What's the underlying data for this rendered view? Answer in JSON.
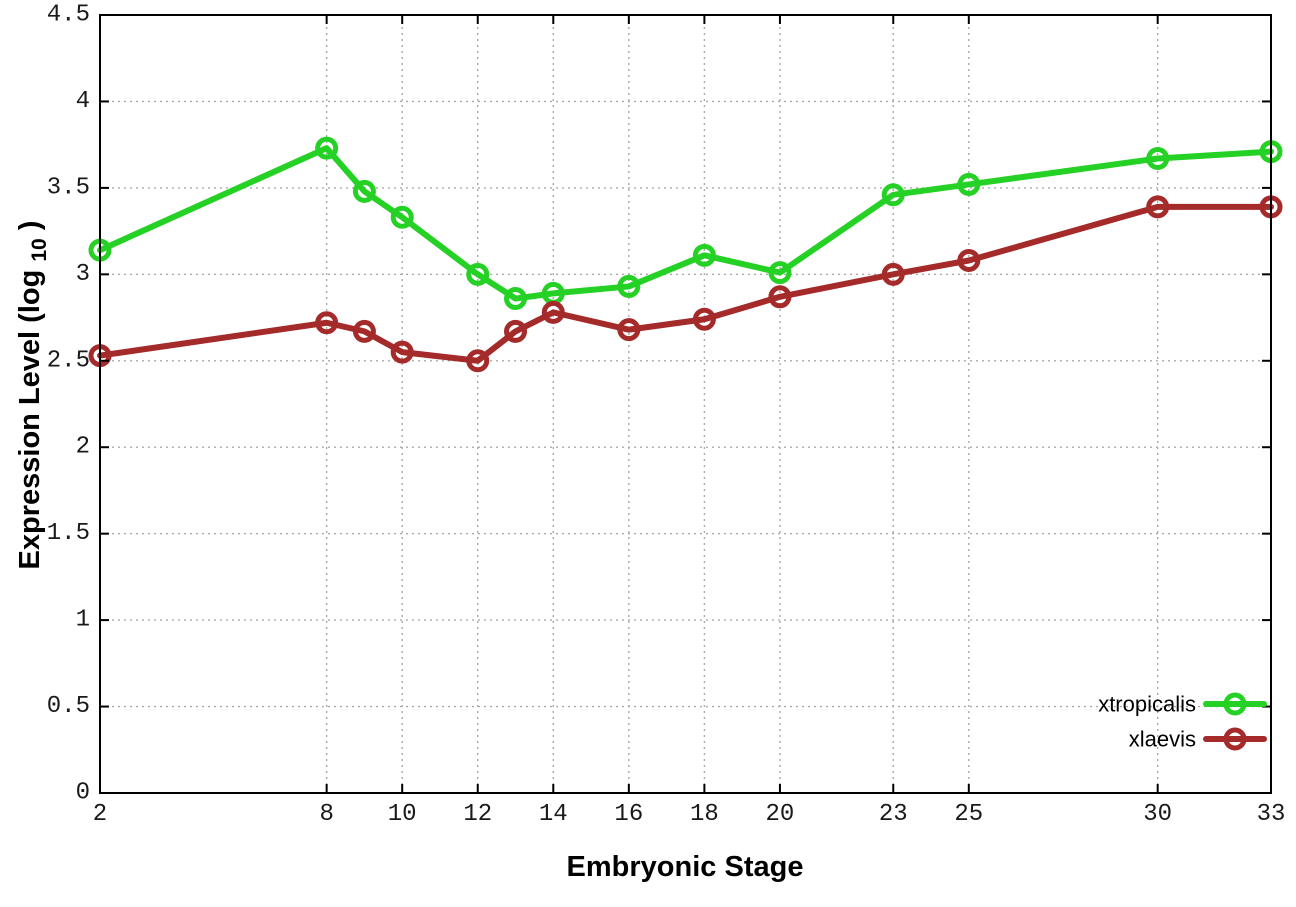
{
  "chart_data": {
    "type": "line",
    "title": "",
    "xlabel": "Embryonic Stage",
    "ylabel": "Expression Level (log10)",
    "ylabel_parts": {
      "main": "Expression Level (log",
      "sub": "10",
      "end": ")"
    },
    "x": [
      2,
      8,
      9,
      10,
      12,
      13,
      14,
      16,
      18,
      20,
      23,
      25,
      30,
      33
    ],
    "series": [
      {
        "name": "xtropicalis",
        "color": "#25d125",
        "marker": "open-circle",
        "values": [
          3.14,
          3.73,
          3.48,
          3.33,
          3.0,
          2.86,
          2.89,
          2.93,
          3.11,
          3.01,
          3.46,
          3.52,
          3.67,
          3.71
        ]
      },
      {
        "name": "xlaevis",
        "color": "#a52a2a",
        "marker": "open-circle",
        "values": [
          2.53,
          2.72,
          2.67,
          2.55,
          2.5,
          2.67,
          2.78,
          2.68,
          2.74,
          2.87,
          3.0,
          3.08,
          3.39,
          3.39
        ]
      }
    ],
    "xlim": [
      2,
      33
    ],
    "ylim": [
      0,
      4.5
    ],
    "xticks": [
      2,
      8,
      10,
      12,
      14,
      16,
      18,
      20,
      23,
      25,
      30,
      33
    ],
    "yticks": [
      0,
      0.5,
      1,
      1.5,
      2,
      2.5,
      3,
      3.5,
      4,
      4.5
    ],
    "grid": true,
    "grid_color": "#aaaaaa",
    "axis_color": "#000000",
    "legend_position": "inside-bottom-right"
  }
}
